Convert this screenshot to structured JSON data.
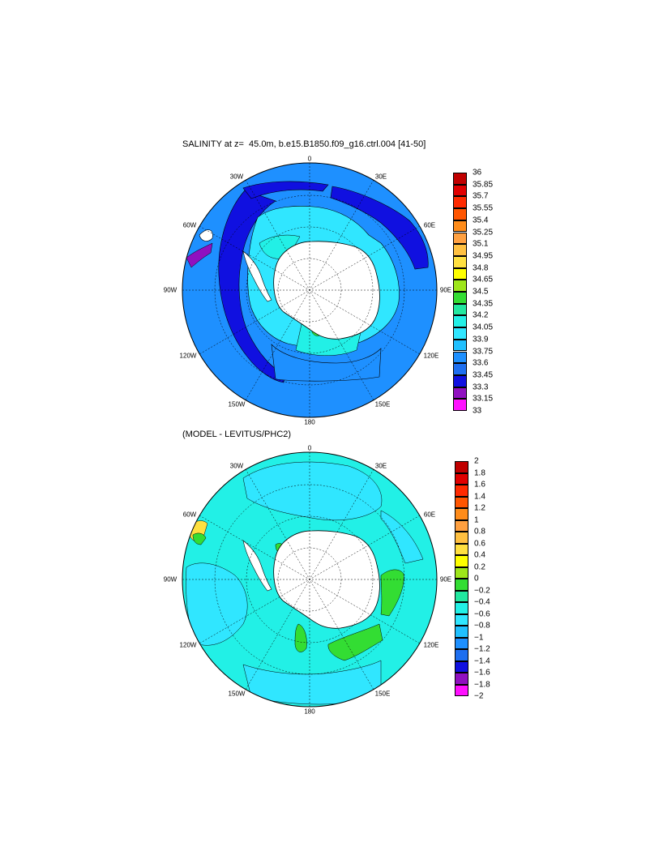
{
  "top_panel": {
    "title": "SALINITY at z=  45.0m, b.e15.B1850.f09_g16.ctrl.004 [41-50]",
    "lon_labels": {
      "l0": "0",
      "l30e": "30E",
      "l60e": "60E",
      "l90e": "90E",
      "l120e": "120E",
      "l150e": "150E",
      "l180": "180",
      "l150w": "150W",
      "l120w": "120W",
      "l90w": "90W",
      "l60w": "60W",
      "l30w": "30W"
    },
    "colorbar": {
      "labels": [
        "36",
        "35.85",
        "35.7",
        "35.55",
        "35.4",
        "35.25",
        "35.1",
        "34.95",
        "34.8",
        "34.65",
        "34.5",
        "34.35",
        "34.2",
        "34.05",
        "33.9",
        "33.75",
        "33.6",
        "33.45",
        "33.3",
        "33.15",
        "33"
      ],
      "colors": [
        "#c00000",
        "#e00000",
        "#ff2a00",
        "#ff5500",
        "#ff8c1a",
        "#ffa040",
        "#ffc040",
        "#ffe040",
        "#ffff00",
        "#9ee61a",
        "#33dd33",
        "#22e8a0",
        "#22f0e6",
        "#30e6ff",
        "#20c0ff",
        "#1e90ff",
        "#1e6ff0",
        "#1010e0",
        "#9010c0",
        "#ff10ff",
        "#c8c8c8",
        "#707070"
      ]
    }
  },
  "bottom_panel": {
    "title": "(MODEL - LEVITUS/PHC2)",
    "lon_labels": {
      "l0": "0",
      "l30e": "30E",
      "l60e": "60E",
      "l90e": "90E",
      "l120e": "120E",
      "l150e": "150E",
      "l180": "180",
      "l150w": "150W",
      "l120w": "120W",
      "l90w": "90W",
      "l60w": "60W",
      "l30w": "30W"
    },
    "colorbar": {
      "labels": [
        "2",
        "1.8",
        "1.6",
        "1.4",
        "1.2",
        "1",
        "0.8",
        "0.6",
        "0.4",
        "0.2",
        "0",
        "−0.2",
        "−0.4",
        "−0.6",
        "−0.8",
        "−1",
        "−1.2",
        "−1.4",
        "−1.6",
        "−1.8",
        "−2"
      ],
      "colors": [
        "#c00000",
        "#e00000",
        "#ff2a00",
        "#ff5500",
        "#ff8c1a",
        "#ffa040",
        "#ffc040",
        "#ffe040",
        "#ffff00",
        "#9ee61a",
        "#33dd33",
        "#22e8a0",
        "#22f0e6",
        "#30e6ff",
        "#20c0ff",
        "#1e90ff",
        "#1e6ff0",
        "#1010e0",
        "#9010c0",
        "#ff10ff",
        "#c8c8c8",
        "#707070"
      ]
    }
  },
  "field_colors": {
    "ocean_top": "#1e90ff",
    "deep_blue": "#1010e0",
    "shelf_cyan": "#22f0e6",
    "light_blue": "#30e6ff",
    "ocean_bottom": "#22f0e6",
    "diff_green": "#33dd33",
    "land": "#ffffff"
  }
}
